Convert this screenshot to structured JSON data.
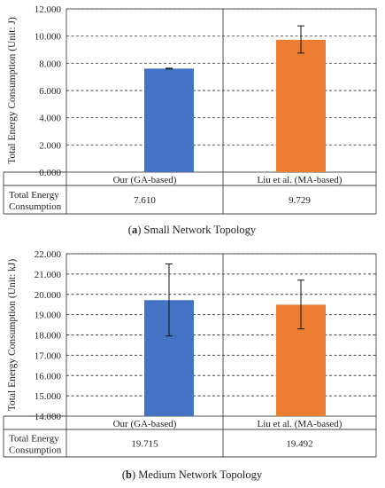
{
  "colors": {
    "our": "#4472c4",
    "liu": "#ed7d31"
  },
  "chart_data": [
    {
      "type": "bar",
      "caption_label": "(a)",
      "caption_text": "Small Network Topology",
      "ylabel": "Total Energy Consumption (Unit: J)",
      "ylim": [
        0,
        12
      ],
      "yticks": [
        "0.000",
        "2.000",
        "4.000",
        "6.000",
        "8.000",
        "10.000",
        "12.000"
      ],
      "ytick_values": [
        0,
        2,
        4,
        6,
        8,
        10,
        12
      ],
      "grid": true,
      "categories": [
        "Our (GA-based)",
        "Liu et al. (MA-based)"
      ],
      "values": [
        7.61,
        9.729
      ],
      "error_low": [
        7.58,
        8.75
      ],
      "error_high": [
        7.64,
        10.75
      ],
      "table_row_label": "Total Energy Consumption",
      "table_values": [
        "7.610",
        "9.729"
      ]
    },
    {
      "type": "bar",
      "caption_label": "(b)",
      "caption_text": "Medium Network Topology",
      "ylabel": "Total Energy Consumption (Unit: kJ)",
      "ylim": [
        14,
        22
      ],
      "yticks": [
        "14.000",
        "15.000",
        "16.000",
        "17.000",
        "18.000",
        "19.000",
        "20.000",
        "21.000",
        "22.000"
      ],
      "ytick_values": [
        14,
        15,
        16,
        17,
        18,
        19,
        20,
        21,
        22
      ],
      "grid": true,
      "categories": [
        "Our (GA-based)",
        "Liu et al. (MA-based)"
      ],
      "values": [
        19.715,
        19.492
      ],
      "error_low": [
        17.95,
        18.3
      ],
      "error_high": [
        21.5,
        20.7
      ],
      "table_row_label": "Total Energy Consumption",
      "table_values": [
        "19.715",
        "19.492"
      ]
    }
  ]
}
